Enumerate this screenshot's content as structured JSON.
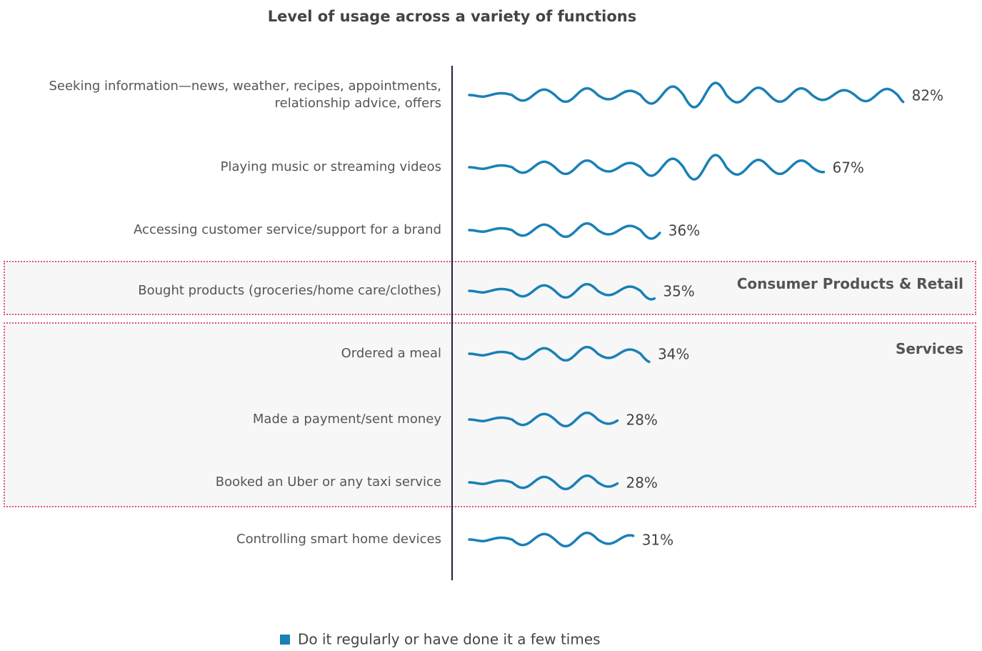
{
  "chart_data": {
    "type": "bar",
    "orientation": "horizontal",
    "title": "Level of usage across a variety of functions",
    "categories": [
      "Seeking information—news, weather, recipes, appointments,\nrelationship advice, offers",
      "Playing music or streaming videos",
      "Accessing customer service/support for a brand",
      "Bought products (groceries/home care/clothes)",
      "Ordered a meal",
      "Made a payment/sent money",
      "Booked an Uber or any taxi service",
      "Controlling smart home devices"
    ],
    "series": [
      {
        "name": "Do it regularly or have done it a few times",
        "color": "#1a80b6",
        "values": [
          82,
          67,
          36,
          35,
          34,
          28,
          28,
          31
        ],
        "value_labels": [
          "82%",
          "67%",
          "36%",
          "35%",
          "34%",
          "28%",
          "28%",
          "31%"
        ]
      }
    ],
    "groups": [
      "Consumer Products & Retail",
      "Services"
    ],
    "legend": "bottom"
  }
}
